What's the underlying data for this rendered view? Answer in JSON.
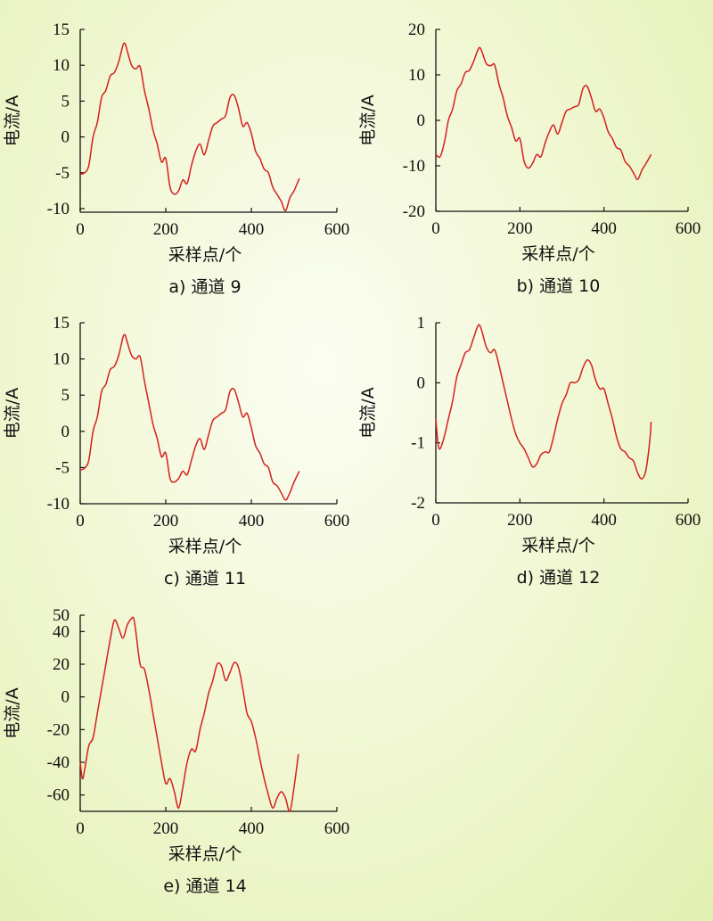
{
  "chart_data": [
    {
      "type": "line",
      "caption": "a) 通道 9",
      "xlabel": "采样点/个",
      "ylabel": "电流/A",
      "xlim": [
        0,
        600
      ],
      "ylim": [
        -10.5,
        15
      ],
      "xticks": [
        0,
        200,
        400,
        600
      ],
      "yticks": [
        -10,
        -5,
        0,
        5,
        10,
        15
      ],
      "series": [
        {
          "color": "#d42020",
          "x": [
            0,
            10,
            20,
            30,
            40,
            50,
            60,
            70,
            80,
            90,
            100,
            105,
            110,
            120,
            130,
            140,
            150,
            160,
            170,
            180,
            190,
            200,
            210,
            220,
            230,
            240,
            250,
            260,
            270,
            280,
            290,
            300,
            310,
            320,
            330,
            340,
            350,
            360,
            370,
            380,
            390,
            400,
            410,
            420,
            430,
            440,
            450,
            460,
            470,
            480,
            490,
            500,
            512
          ],
          "y": [
            -5.2,
            -5.0,
            -4.0,
            0,
            2.0,
            5.5,
            6.5,
            8.5,
            9.0,
            10.5,
            12.8,
            13.0,
            12.0,
            10.0,
            9.5,
            9.8,
            6.5,
            4.0,
            1.0,
            -1.0,
            -3.5,
            -3.0,
            -7.0,
            -8.0,
            -7.5,
            -6.0,
            -6.5,
            -4.0,
            -2.0,
            -1.0,
            -2.5,
            -0.5,
            1.5,
            2.0,
            2.5,
            3.0,
            5.5,
            5.8,
            4.0,
            1.5,
            2.0,
            0.5,
            -2.0,
            -3.0,
            -4.5,
            -5.0,
            -7.0,
            -8.0,
            -9.0,
            -10.3,
            -8.5,
            -7.5,
            -5.8
          ]
        }
      ]
    },
    {
      "type": "line",
      "caption": "b) 通道 10",
      "xlabel": "采样点/个",
      "ylabel": "电流/A",
      "xlim": [
        0,
        600
      ],
      "ylim": [
        -20,
        20
      ],
      "xticks": [
        0,
        200,
        400,
        600
      ],
      "yticks": [
        -20,
        -10,
        0,
        10,
        20
      ],
      "series": [
        {
          "color": "#d42020",
          "x": [
            0,
            10,
            20,
            30,
            40,
            50,
            60,
            70,
            80,
            90,
            100,
            105,
            110,
            120,
            130,
            140,
            150,
            160,
            170,
            180,
            190,
            200,
            210,
            220,
            230,
            240,
            250,
            260,
            270,
            280,
            290,
            300,
            310,
            320,
            330,
            340,
            350,
            360,
            370,
            380,
            390,
            400,
            410,
            420,
            430,
            440,
            450,
            460,
            470,
            480,
            490,
            500,
            512
          ],
          "y": [
            -7.5,
            -8.0,
            -5.0,
            0,
            2.5,
            6.5,
            8.0,
            10.5,
            11.0,
            13.0,
            15.5,
            16.0,
            15.0,
            12.5,
            12.0,
            12.2,
            8.0,
            5.0,
            1.0,
            -1.5,
            -4.5,
            -4.0,
            -9.0,
            -10.5,
            -9.5,
            -7.5,
            -8.0,
            -5.0,
            -2.5,
            -1.0,
            -3.0,
            -0.5,
            2.0,
            2.5,
            3.0,
            3.5,
            7.0,
            7.5,
            5.0,
            2.0,
            2.5,
            0.5,
            -2.5,
            -4.0,
            -6.0,
            -6.5,
            -9.0,
            -10.0,
            -11.5,
            -13.0,
            -11.0,
            -9.5,
            -7.5
          ]
        }
      ]
    },
    {
      "type": "line",
      "caption": "c) 通道 11",
      "xlabel": "采样点/个",
      "ylabel": "电流/A",
      "xlim": [
        0,
        600
      ],
      "ylim": [
        -10,
        15
      ],
      "xticks": [
        0,
        200,
        400,
        600
      ],
      "yticks": [
        -10,
        -5,
        0,
        5,
        10,
        15
      ],
      "series": [
        {
          "color": "#d42020",
          "x": [
            0,
            10,
            20,
            30,
            40,
            50,
            60,
            70,
            80,
            90,
            100,
            105,
            110,
            120,
            130,
            140,
            150,
            160,
            170,
            180,
            190,
            200,
            210,
            220,
            230,
            240,
            250,
            260,
            270,
            280,
            290,
            300,
            310,
            320,
            330,
            340,
            350,
            360,
            370,
            380,
            390,
            400,
            410,
            420,
            430,
            440,
            450,
            460,
            470,
            480,
            490,
            500,
            512
          ],
          "y": [
            -5.3,
            -5.1,
            -4.0,
            0,
            2.0,
            5.5,
            6.5,
            8.5,
            9.0,
            10.5,
            13.0,
            13.3,
            12.3,
            10.5,
            10.0,
            10.3,
            7.0,
            4.0,
            1.0,
            -1.0,
            -3.5,
            -3.0,
            -6.5,
            -7.0,
            -6.5,
            -5.5,
            -6.0,
            -4.0,
            -2.0,
            -1.0,
            -2.5,
            -0.5,
            1.5,
            2.0,
            2.5,
            3.0,
            5.5,
            5.8,
            4.0,
            2.0,
            2.5,
            0.5,
            -2.0,
            -3.0,
            -4.5,
            -5.0,
            -7.0,
            -7.5,
            -8.5,
            -9.5,
            -8.5,
            -7.0,
            -5.5
          ]
        }
      ]
    },
    {
      "type": "line",
      "caption": "d) 通道 12",
      "xlabel": "采样点/个",
      "ylabel": "电流/A",
      "xlim": [
        0,
        600
      ],
      "ylim": [
        -2,
        1
      ],
      "xticks": [
        0,
        200,
        400,
        600
      ],
      "yticks": [
        -2,
        -1,
        0,
        1
      ],
      "series": [
        {
          "color": "#d42020",
          "x": [
            0,
            5,
            10,
            20,
            30,
            40,
            50,
            60,
            70,
            80,
            90,
            100,
            105,
            110,
            120,
            130,
            140,
            150,
            160,
            170,
            180,
            190,
            200,
            210,
            220,
            230,
            240,
            250,
            260,
            270,
            280,
            290,
            300,
            310,
            320,
            330,
            340,
            350,
            360,
            370,
            380,
            390,
            400,
            410,
            420,
            430,
            440,
            450,
            460,
            470,
            480,
            490,
            500,
            510,
            512
          ],
          "y": [
            -0.6,
            -1.0,
            -1.1,
            -0.9,
            -0.6,
            -0.3,
            0.1,
            0.3,
            0.5,
            0.55,
            0.75,
            0.95,
            0.95,
            0.85,
            0.6,
            0.5,
            0.55,
            0.3,
            0.0,
            -0.3,
            -0.6,
            -0.85,
            -1.0,
            -1.1,
            -1.25,
            -1.4,
            -1.35,
            -1.2,
            -1.15,
            -1.15,
            -0.9,
            -0.6,
            -0.35,
            -0.2,
            0.0,
            0.0,
            0.05,
            0.25,
            0.38,
            0.3,
            0.05,
            -0.1,
            -0.1,
            -0.35,
            -0.6,
            -0.9,
            -1.1,
            -1.15,
            -1.25,
            -1.3,
            -1.5,
            -1.6,
            -1.45,
            -0.9,
            -0.65
          ]
        }
      ]
    },
    {
      "type": "line",
      "caption": "e) 通道 14",
      "xlabel": "采样点/个",
      "ylabel": "电流/A",
      "xlim": [
        0,
        600
      ],
      "ylim": [
        -70,
        50
      ],
      "xticks": [
        0,
        200,
        400,
        600
      ],
      "yticks": [
        -60,
        -40,
        -20,
        0,
        20,
        40,
        50
      ],
      "series": [
        {
          "color": "#d42020",
          "x": [
            0,
            5,
            10,
            20,
            30,
            40,
            50,
            60,
            70,
            80,
            90,
            100,
            110,
            120,
            125,
            130,
            140,
            150,
            160,
            170,
            180,
            190,
            200,
            210,
            220,
            230,
            240,
            250,
            260,
            270,
            280,
            290,
            300,
            310,
            320,
            330,
            340,
            350,
            360,
            370,
            380,
            390,
            400,
            410,
            420,
            430,
            440,
            450,
            460,
            470,
            480,
            490,
            500,
            510
          ],
          "y": [
            -40,
            -50,
            -45,
            -30,
            -25,
            -10,
            5,
            20,
            35,
            47,
            42,
            36,
            44,
            48,
            48,
            40,
            20,
            17,
            5,
            -10,
            -25,
            -40,
            -53,
            -50,
            -58,
            -68,
            -55,
            -40,
            -32,
            -33,
            -20,
            -10,
            2,
            10,
            20,
            19,
            10,
            15,
            21,
            18,
            5,
            -10,
            -15,
            -25,
            -38,
            -50,
            -60,
            -68,
            -62,
            -58,
            -62,
            -70,
            -55,
            -35
          ]
        }
      ]
    }
  ]
}
